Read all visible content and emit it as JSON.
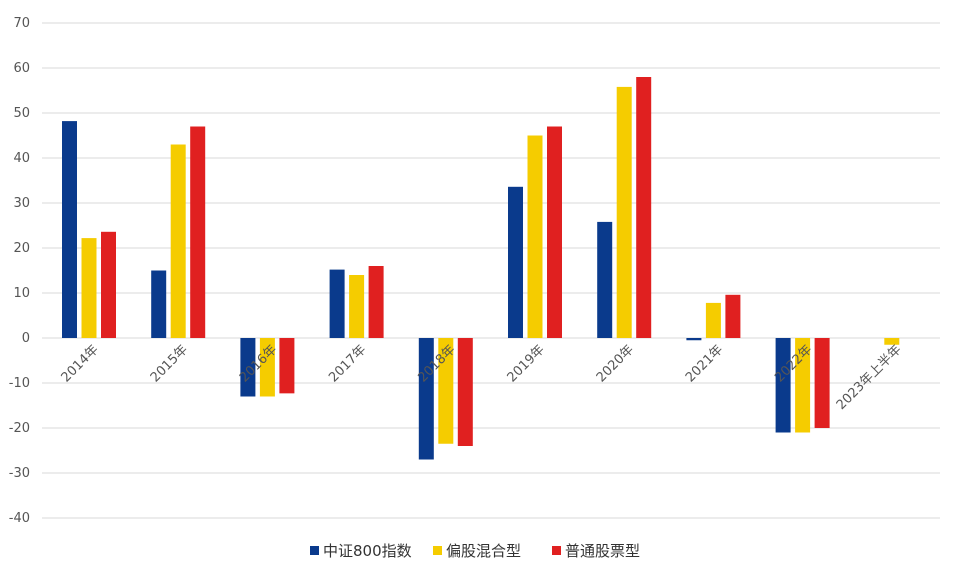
{
  "chart_data": {
    "type": "bar",
    "categories": [
      "2014年",
      "2015年",
      "2016年",
      "2017年",
      "2018年",
      "2019年",
      "2020年",
      "2021年",
      "2022年",
      "2023年上半年"
    ],
    "series": [
      {
        "name": "中证800指数",
        "color": "#0a3a8c",
        "values": [
          48.2,
          15.0,
          -13.0,
          15.2,
          -27.0,
          33.6,
          25.8,
          -0.5,
          -21.0,
          null
        ]
      },
      {
        "name": "偏股混合型",
        "color": "#f5cc00",
        "values": [
          22.2,
          43.0,
          -13.0,
          14.0,
          -23.5,
          45.0,
          55.8,
          7.8,
          -21.0,
          -1.5
        ]
      },
      {
        "name": "普通股票型",
        "color": "#e02020",
        "values": [
          23.6,
          47.0,
          -12.3,
          16.0,
          -24.0,
          47.0,
          58.0,
          9.6,
          -20.0,
          null
        ]
      }
    ],
    "ylim": [
      -40,
      70
    ],
    "yticks": [
      -40,
      -30,
      -20,
      -10,
      0,
      10,
      20,
      30,
      40,
      50,
      60,
      70
    ],
    "grid": true,
    "legend_position": "bottom"
  }
}
